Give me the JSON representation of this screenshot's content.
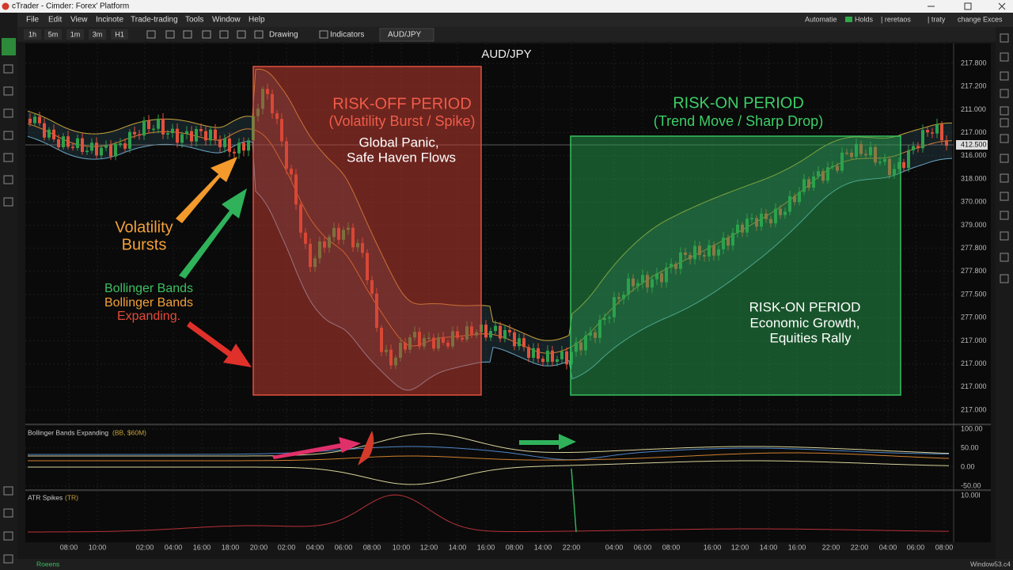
{
  "window": {
    "title": "cTrader - Cimder: Forex' Platform"
  },
  "menu": {
    "items": [
      "File",
      "Edit",
      "View",
      "Incinote",
      "Trade-trading",
      "Tools",
      "Window",
      "Help"
    ],
    "right": [
      "Automatie",
      "Holds",
      "| reretaos",
      "| traty",
      "change Exces"
    ]
  },
  "toolbar": {
    "timeframes": [
      "1h",
      "5m",
      "1m",
      "3m",
      "H1"
    ],
    "drawing": "Drawing",
    "indicators": "Indicators",
    "tab": "AUD/JPY"
  },
  "chart": {
    "symbol": "AUD/JPY",
    "price_labels": [
      "217.800",
      "217.200",
      "211.000",
      "217.000",
      "316.000",
      "318.000",
      "370.000",
      "379.000",
      "277.800",
      "277.800",
      "277.500",
      "277.000",
      "217.000",
      "217.000",
      "217.000",
      "217.000"
    ],
    "current_price": "412.500",
    "time_labels": [
      "08:00",
      "10:00",
      "02:00",
      "04:00",
      "16:00",
      "18:00",
      "20:00",
      "02:00",
      "04:00",
      "06:00",
      "08:00",
      "10:00",
      "12:00",
      "14:00",
      "16:00",
      "08:00",
      "14:00",
      "22:00",
      "04:00",
      "06:00",
      "08:00",
      "16:00",
      "12:00",
      "14:00",
      "16:00",
      "22:00",
      "22:00",
      "04:00",
      "06:00",
      "08:00"
    ],
    "annotations": {
      "risk_off_title": "RISK-OFF PERIOD",
      "risk_off_subtitle": "(Volatility Burst / Spike)",
      "risk_off_note": [
        "Global Panic,",
        "Safe Haven Flows"
      ],
      "risk_on_title": "RISK-ON PERIOD",
      "risk_on_subtitle": "(Trend Move / Sharp Drop)",
      "risk_on_note": [
        "RISK-ON PERIOD",
        "Economic Growth,",
        "Equities Rally"
      ],
      "volatility": [
        "Volatility",
        "Bursts"
      ],
      "bollinger": [
        "Bollinger Bands",
        "Bollinger Bands",
        "Expanding."
      ]
    }
  },
  "indicators": [
    {
      "name": "Bollinger Bands Expanding",
      "params": "(BB, $60M)",
      "scale": [
        "100.00",
        "50.00",
        "0.00",
        "-50.00"
      ]
    },
    {
      "name": "ATR Spikes",
      "params": "(TR)",
      "scale": [
        "10.00l"
      ]
    }
  ],
  "status": {
    "left": "Roeens",
    "right": "Window53.c4"
  }
}
